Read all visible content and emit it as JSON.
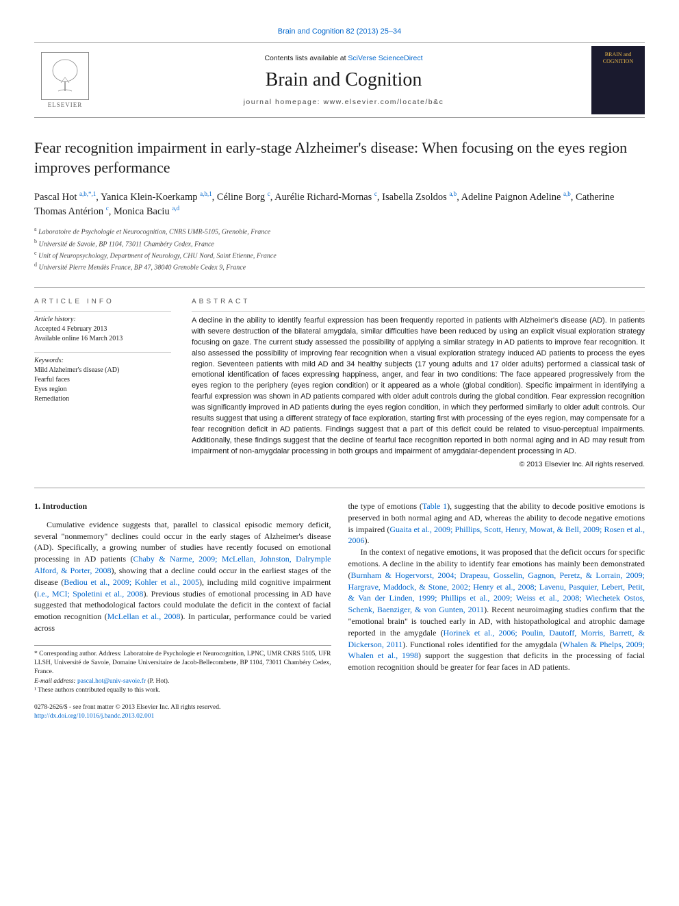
{
  "header": {
    "citation": "Brain and Cognition 82 (2013) 25–34",
    "contents_prefix": "Contents lists available at ",
    "contents_link": "SciVerse ScienceDirect",
    "journal_name": "Brain and Cognition",
    "homepage_prefix": "journal homepage: ",
    "homepage_url": "www.elsevier.com/locate/b&c",
    "publisher_name": "ELSEVIER",
    "cover_text": "BRAIN and COGNITION"
  },
  "title": "Fear recognition impairment in early-stage Alzheimer's disease: When focusing on the eyes region improves performance",
  "authors_html": "Pascal Hot <sup>a,b,*,1</sup>, Yanica Klein-Koerkamp <sup>a,b,1</sup>, Céline Borg <sup>c</sup>, Aurélie Richard-Mornas <sup>c</sup>, Isabella Zsoldos <sup>a,b</sup>, Adeline Paignon Adeline <sup>a,b</sup>, Catherine Thomas Antérion <sup>c</sup>, Monica Baciu <sup>a,d</sup>",
  "affiliations": [
    {
      "sup": "a",
      "text": "Laboratoire de Psychologie et Neurocognition, CNRS UMR-5105, Grenoble, France"
    },
    {
      "sup": "b",
      "text": "Université de Savoie, BP 1104, 73011 Chambéry Cedex, France"
    },
    {
      "sup": "c",
      "text": "Unit of Neuropsychology, Department of Neurology, CHU Nord, Saint Etienne, France"
    },
    {
      "sup": "d",
      "text": "Université Pierre Mendès France, BP 47, 38040 Grenoble Cedex 9, France"
    }
  ],
  "info": {
    "label": "article info",
    "history_label": "Article history:",
    "history": [
      "Accepted 4 February 2013",
      "Available online 16 March 2013"
    ],
    "keywords_label": "Keywords:",
    "keywords": [
      "Mild Alzheimer's disease (AD)",
      "Fearful faces",
      "Eyes region",
      "Remediation"
    ]
  },
  "abstract": {
    "label": "abstract",
    "text": "A decline in the ability to identify fearful expression has been frequently reported in patients with Alzheimer's disease (AD). In patients with severe destruction of the bilateral amygdala, similar difficulties have been reduced by using an explicit visual exploration strategy focusing on gaze. The current study assessed the possibility of applying a similar strategy in AD patients to improve fear recognition. It also assessed the possibility of improving fear recognition when a visual exploration strategy induced AD patients to process the eyes region. Seventeen patients with mild AD and 34 healthy subjects (17 young adults and 17 older adults) performed a classical task of emotional identification of faces expressing happiness, anger, and fear in two conditions: The face appeared progressively from the eyes region to the periphery (eyes region condition) or it appeared as a whole (global condition). Specific impairment in identifying a fearful expression was shown in AD patients compared with older adult controls during the global condition. Fear expression recognition was significantly improved in AD patients during the eyes region condition, in which they performed similarly to older adult controls. Our results suggest that using a different strategy of face exploration, starting first with processing of the eyes region, may compensate for a fear recognition deficit in AD patients. Findings suggest that a part of this deficit could be related to visuo-perceptual impairments. Additionally, these findings suggest that the decline of fearful face recognition reported in both normal aging and in AD may result from impairment of non-amygdalar processing in both groups and impairment of amygdalar-dependent processing in AD.",
    "copyright": "© 2013 Elsevier Inc. All rights reserved."
  },
  "body": {
    "heading": "1. Introduction",
    "col1_p1": "Cumulative evidence suggests that, parallel to classical episodic memory deficit, several \"nonmemory\" declines could occur in the early stages of Alzheimer's disease (AD). Specifically, a growing number of studies have recently focused on emotional processing in AD patients (Chaby & Narme, 2009; McLellan, Johnston, Dalrymple Alford, & Porter, 2008), showing that a decline could occur in the earliest stages of the disease (Bediou et al., 2009; Kohler et al., 2005), including mild cognitive impairment (i.e., MCI; Spoletini et al., 2008). Previous studies of emotional processing in AD have suggested that methodological factors could modulate the deficit in the context of facial emotion recognition (McLellan et al., 2008). In particular, performance could be varied across",
    "col2_p1": "the type of emotions (Table 1), suggesting that the ability to decode positive emotions is preserved in both normal aging and AD, whereas the ability to decode negative emotions is impaired (Guaita et al., 2009; Phillips, Scott, Henry, Mowat, & Bell, 2009; Rosen et al., 2006).",
    "col2_p2": "In the context of negative emotions, it was proposed that the deficit occurs for specific emotions. A decline in the ability to identify fear emotions has mainly been demonstrated (Burnham & Hogervorst, 2004; Drapeau, Gosselin, Gagnon, Peretz, & Lorrain, 2009; Hargrave, Maddock, & Stone, 2002; Henry et al., 2008; Lavenu, Pasquier, Lebert, Petit, & Van der Linden, 1999; Phillips et al., 2009; Weiss et al., 2008; Wiechetek Ostos, Schenk, Baenziger, & von Gunten, 2011). Recent neuroimaging studies confirm that the \"emotional brain\" is touched early in AD, with histopathological and atrophic damage reported in the amygdale (Horinek et al., 2006; Poulin, Dautoff, Morris, Barrett, & Dickerson, 2011). Functional roles identified for the amygdala (Whalen & Phelps, 2009; Whalen et al., 1998) support the suggestion that deficits in the processing of facial emotion recognition should be greater for fear faces in AD patients."
  },
  "footnotes": {
    "corresponding": "* Corresponding author. Address: Laboratoire de Psychologie et Neurocognition, LPNC, UMR CNRS 5105, UFR LLSH, Université de Savoie, Domaine Universitaire de Jacob-Bellecombette, BP 1104, 73011 Chambéry Cedex, France.",
    "email_label": "E-mail address: ",
    "email": "pascal.hot@univ-savoie.fr",
    "email_suffix": " (P. Hot).",
    "equal": "¹ These authors contributed equally to this work."
  },
  "doi": {
    "issn_line": "0278-2626/$ - see front matter © 2013 Elsevier Inc. All rights reserved.",
    "doi_url": "http://dx.doi.org/10.1016/j.bandc.2013.02.001"
  },
  "colors": {
    "link": "#0066cc",
    "text": "#1a1a1a",
    "rule": "#999999",
    "cover_bg": "#1a1a2e",
    "cover_fg": "#e8b84a"
  }
}
